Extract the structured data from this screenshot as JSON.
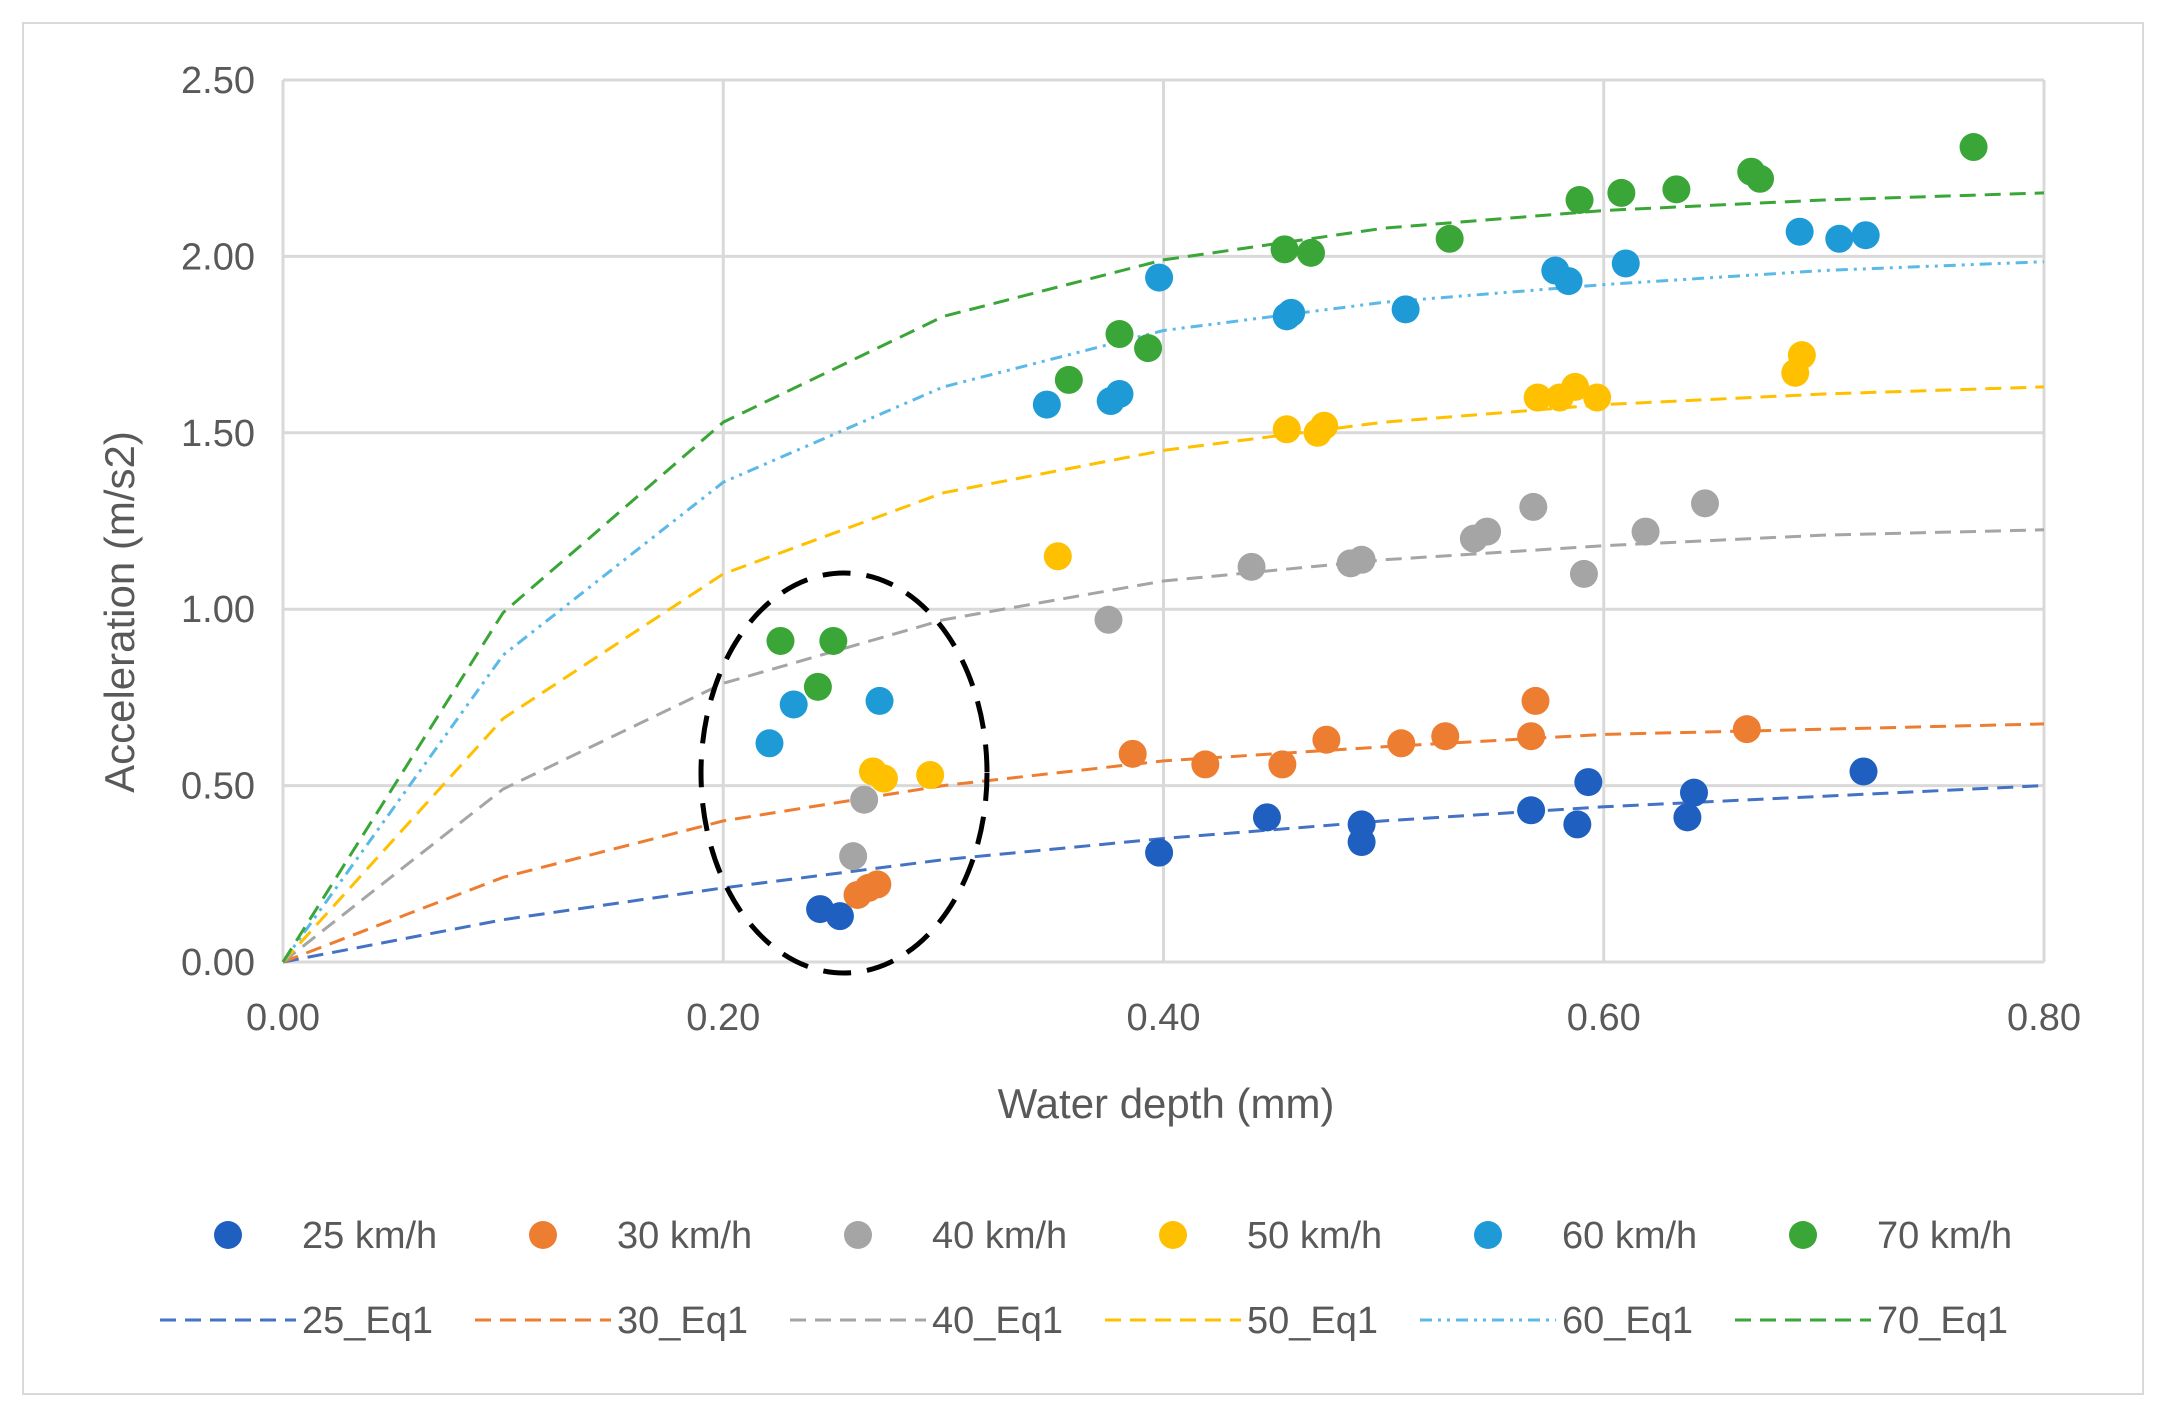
{
  "chart_data": {
    "type": "scatter",
    "title": "",
    "xlabel": "Water depth (mm)",
    "ylabel": "Acceleration (m/s2)",
    "xlim": [
      0,
      0.8
    ],
    "ylim": [
      0,
      2.5
    ],
    "x_ticks": [
      "0.00",
      "0.20",
      "0.40",
      "0.60",
      "0.80"
    ],
    "y_ticks": [
      "0.00",
      "0.50",
      "1.00",
      "1.50",
      "2.00",
      "2.50"
    ],
    "grid": true,
    "legend_position": "bottom",
    "annotations": [
      "dashed black ellipse around x 0.20–0.32, y 0.03–1.10"
    ],
    "scatter_series": [
      {
        "name": "25 km/h",
        "color": "#1f5fbf",
        "points": [
          [
            0.244,
            0.15
          ],
          [
            0.253,
            0.13
          ],
          [
            0.398,
            0.31
          ],
          [
            0.447,
            0.41
          ],
          [
            0.49,
            0.39
          ],
          [
            0.49,
            0.34
          ],
          [
            0.567,
            0.43
          ],
          [
            0.588,
            0.39
          ],
          [
            0.593,
            0.51
          ],
          [
            0.638,
            0.41
          ],
          [
            0.641,
            0.48
          ],
          [
            0.718,
            0.54
          ]
        ]
      },
      {
        "name": "30 km/h",
        "color": "#ed7d31",
        "points": [
          [
            0.261,
            0.19
          ],
          [
            0.266,
            0.21
          ],
          [
            0.27,
            0.22
          ],
          [
            0.386,
            0.59
          ],
          [
            0.419,
            0.56
          ],
          [
            0.454,
            0.56
          ],
          [
            0.474,
            0.63
          ],
          [
            0.508,
            0.62
          ],
          [
            0.528,
            0.64
          ],
          [
            0.567,
            0.64
          ],
          [
            0.569,
            0.74
          ],
          [
            0.665,
            0.66
          ]
        ]
      },
      {
        "name": "40 km/h",
        "color": "#a5a5a5",
        "points": [
          [
            0.259,
            0.3
          ],
          [
            0.264,
            0.46
          ],
          [
            0.375,
            0.97
          ],
          [
            0.44,
            1.12
          ],
          [
            0.485,
            1.13
          ],
          [
            0.49,
            1.14
          ],
          [
            0.541,
            1.2
          ],
          [
            0.547,
            1.22
          ],
          [
            0.568,
            1.29
          ],
          [
            0.591,
            1.1
          ],
          [
            0.619,
            1.22
          ],
          [
            0.646,
            1.3
          ]
        ]
      },
      {
        "name": "50 km/h",
        "color": "#ffc000",
        "points": [
          [
            0.268,
            0.54
          ],
          [
            0.273,
            0.52
          ],
          [
            0.294,
            0.53
          ],
          [
            0.352,
            1.15
          ],
          [
            0.456,
            1.51
          ],
          [
            0.47,
            1.5
          ],
          [
            0.473,
            1.52
          ],
          [
            0.57,
            1.6
          ],
          [
            0.58,
            1.6
          ],
          [
            0.587,
            1.63
          ],
          [
            0.597,
            1.6
          ],
          [
            0.687,
            1.67
          ],
          [
            0.69,
            1.72
          ]
        ]
      },
      {
        "name": "60 km/h",
        "color": "#1e9bd7",
        "points": [
          [
            0.221,
            0.62
          ],
          [
            0.232,
            0.73
          ],
          [
            0.271,
            0.74
          ],
          [
            0.347,
            1.58
          ],
          [
            0.376,
            1.59
          ],
          [
            0.38,
            1.61
          ],
          [
            0.398,
            1.94
          ],
          [
            0.456,
            1.83
          ],
          [
            0.458,
            1.84
          ],
          [
            0.51,
            1.85
          ],
          [
            0.578,
            1.96
          ],
          [
            0.584,
            1.93
          ],
          [
            0.61,
            1.98
          ],
          [
            0.689,
            2.07
          ],
          [
            0.707,
            2.05
          ],
          [
            0.719,
            2.06
          ]
        ]
      },
      {
        "name": "70 km/h",
        "color": "#3aa637",
        "points": [
          [
            0.226,
            0.91
          ],
          [
            0.243,
            0.78
          ],
          [
            0.25,
            0.91
          ],
          [
            0.357,
            1.65
          ],
          [
            0.38,
            1.78
          ],
          [
            0.393,
            1.74
          ],
          [
            0.455,
            2.02
          ],
          [
            0.467,
            2.01
          ],
          [
            0.53,
            2.05
          ],
          [
            0.589,
            2.16
          ],
          [
            0.608,
            2.18
          ],
          [
            0.633,
            2.19
          ],
          [
            0.667,
            2.24
          ],
          [
            0.671,
            2.22
          ],
          [
            0.768,
            2.31
          ]
        ]
      }
    ],
    "line_series": [
      {
        "name": "25_Eq1",
        "color": "#4472c4",
        "dash": "dash",
        "points": [
          [
            0,
            0
          ],
          [
            0.1,
            0.12
          ],
          [
            0.2,
            0.21
          ],
          [
            0.3,
            0.29
          ],
          [
            0.4,
            0.35
          ],
          [
            0.5,
            0.4
          ],
          [
            0.6,
            0.44
          ],
          [
            0.7,
            0.47
          ],
          [
            0.8,
            0.5
          ]
        ]
      },
      {
        "name": "30_Eq1",
        "color": "#ed7d31",
        "dash": "dash",
        "points": [
          [
            0,
            0
          ],
          [
            0.1,
            0.24
          ],
          [
            0.2,
            0.4
          ],
          [
            0.3,
            0.5
          ],
          [
            0.4,
            0.57
          ],
          [
            0.5,
            0.61
          ],
          [
            0.6,
            0.645
          ],
          [
            0.7,
            0.66
          ],
          [
            0.8,
            0.675
          ]
        ]
      },
      {
        "name": "40_Eq1",
        "color": "#a5a5a5",
        "dash": "dash",
        "points": [
          [
            0,
            0
          ],
          [
            0.1,
            0.49
          ],
          [
            0.2,
            0.79
          ],
          [
            0.3,
            0.97
          ],
          [
            0.4,
            1.08
          ],
          [
            0.5,
            1.14
          ],
          [
            0.6,
            1.18
          ],
          [
            0.7,
            1.21
          ],
          [
            0.8,
            1.225
          ]
        ]
      },
      {
        "name": "50_Eq1",
        "color": "#ffc000",
        "dash": "dash",
        "points": [
          [
            0,
            0
          ],
          [
            0.1,
            0.69
          ],
          [
            0.2,
            1.1
          ],
          [
            0.3,
            1.33
          ],
          [
            0.4,
            1.45
          ],
          [
            0.5,
            1.53
          ],
          [
            0.6,
            1.58
          ],
          [
            0.7,
            1.61
          ],
          [
            0.8,
            1.63
          ]
        ]
      },
      {
        "name": "60_Eq1",
        "color": "#5bb9e8",
        "dash": "dashdotdot",
        "points": [
          [
            0,
            0
          ],
          [
            0.1,
            0.87
          ],
          [
            0.2,
            1.36
          ],
          [
            0.3,
            1.63
          ],
          [
            0.4,
            1.79
          ],
          [
            0.5,
            1.87
          ],
          [
            0.6,
            1.92
          ],
          [
            0.7,
            1.96
          ],
          [
            0.8,
            1.985
          ]
        ]
      },
      {
        "name": "70_Eq1",
        "color": "#3aa637",
        "dash": "dash",
        "points": [
          [
            0,
            0
          ],
          [
            0.1,
            0.99
          ],
          [
            0.2,
            1.53
          ],
          [
            0.3,
            1.83
          ],
          [
            0.4,
            1.99
          ],
          [
            0.5,
            2.08
          ],
          [
            0.6,
            2.13
          ],
          [
            0.7,
            2.16
          ],
          [
            0.8,
            2.18
          ]
        ]
      }
    ]
  }
}
